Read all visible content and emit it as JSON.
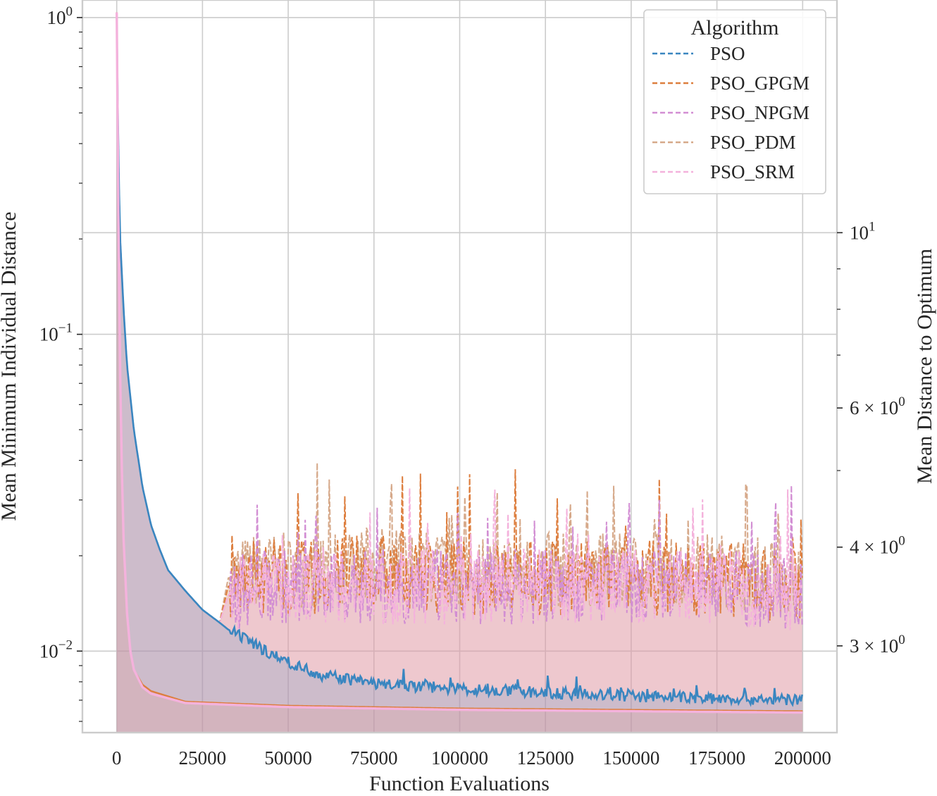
{
  "chart_data": {
    "type": "line",
    "xlabel": "Function Evaluations",
    "ylabel_left": "Mean Minimum Individual Distance",
    "ylabel_right": "Mean Distance to Optimum",
    "x_ticks": [
      "0",
      "25000",
      "50000",
      "75000",
      "100000",
      "125000",
      "150000",
      "175000",
      "200000"
    ],
    "x_tick_values": [
      0,
      25000,
      50000,
      75000,
      100000,
      125000,
      150000,
      175000,
      200000
    ],
    "xlim": [
      -10000,
      210000
    ],
    "left_yscale": "log",
    "left_ylim": [
      0.00553,
      1.136
    ],
    "left_yticks": [
      1,
      0.1,
      0.01
    ],
    "right_yscale": "log",
    "right_ylim": [
      2.33,
      19.7
    ],
    "right_ticks": [
      {
        "value": 10,
        "base": "10",
        "exp": "1"
      },
      {
        "value": 6,
        "base": "6 × 10",
        "exp": "0"
      },
      {
        "value": 4,
        "base": "4 × 10",
        "exp": "0"
      },
      {
        "value": 3,
        "base": "3 × 10",
        "exp": "0"
      }
    ],
    "legend": {
      "title": "Algorithm",
      "placement": "top-right",
      "entries": [
        {
          "name": "PSO",
          "color": "#3a86c0"
        },
        {
          "name": "PSO_GPGM",
          "color": "#dd7e3e"
        },
        {
          "name": "PSO_NPGM",
          "color": "#d28ed3"
        },
        {
          "name": "PSO_PDM",
          "color": "#d6a98a"
        },
        {
          "name": "PSO_SRM",
          "color": "#f4b2dc"
        }
      ]
    },
    "series_left_mean_min_individual_distance": [
      {
        "name": "PSO",
        "color": "#3a86c0",
        "x": [
          0,
          500,
          1000,
          2000,
          3000,
          5000,
          7500,
          10000,
          12500,
          15000,
          20000,
          25000,
          30000,
          32500,
          40000,
          50000,
          60000,
          75000,
          100000,
          125000,
          150000,
          175000,
          200000
        ],
        "y": [
          1.0,
          0.35,
          0.2,
          0.12,
          0.08,
          0.05,
          0.033,
          0.025,
          0.021,
          0.018,
          0.0155,
          0.0135,
          0.0123,
          0.0117,
          0.0105,
          0.0092,
          0.0084,
          0.0079,
          0.0076,
          0.0074,
          0.0072,
          0.0071,
          0.007
        ]
      },
      {
        "name": "PSO_GPGM",
        "color": "#dd7e3e",
        "x": [
          0,
          500,
          1000,
          2000,
          3000,
          5000,
          7500,
          10000,
          12500,
          15000,
          20000,
          25000,
          30000,
          32500,
          40000,
          50000,
          60000,
          75000,
          100000,
          125000,
          150000,
          175000,
          200000
        ],
        "y": [
          1.0,
          0.35,
          0.2,
          0.12,
          0.08,
          0.05,
          0.033,
          0.025,
          0.021,
          0.018,
          0.0155,
          0.0135,
          0.0123,
          0.016,
          0.017,
          0.017,
          0.017,
          0.018,
          0.017,
          0.017,
          0.017,
          0.017,
          0.016
        ]
      },
      {
        "name": "PSO_NPGM",
        "color": "#d28ed3",
        "x": [
          0,
          500,
          1000,
          2000,
          3000,
          5000,
          7500,
          10000,
          12500,
          15000,
          20000,
          25000,
          30000,
          32500,
          40000,
          50000,
          60000,
          75000,
          100000,
          125000,
          150000,
          175000,
          200000
        ],
        "y": [
          1.0,
          0.35,
          0.2,
          0.12,
          0.08,
          0.05,
          0.033,
          0.025,
          0.021,
          0.018,
          0.0155,
          0.0135,
          0.0123,
          0.015,
          0.016,
          0.016,
          0.016,
          0.016,
          0.016,
          0.016,
          0.016,
          0.016,
          0.015
        ]
      },
      {
        "name": "PSO_PDM",
        "color": "#d6a98a",
        "x": [
          0,
          500,
          1000,
          2000,
          3000,
          5000,
          7500,
          10000,
          12500,
          15000,
          20000,
          25000,
          30000,
          32500,
          40000,
          50000,
          60000,
          75000,
          100000,
          125000,
          150000,
          175000,
          200000
        ],
        "y": [
          1.0,
          0.35,
          0.2,
          0.12,
          0.08,
          0.05,
          0.033,
          0.025,
          0.021,
          0.018,
          0.0155,
          0.0135,
          0.0123,
          0.017,
          0.018,
          0.018,
          0.018,
          0.019,
          0.018,
          0.018,
          0.018,
          0.018,
          0.017
        ]
      },
      {
        "name": "PSO_SRM",
        "color": "#f4b2dc",
        "x": [
          0,
          500,
          1000,
          2000,
          3000,
          5000,
          7500,
          10000,
          12500,
          15000,
          20000,
          25000,
          30000,
          32500,
          40000,
          50000,
          60000,
          75000,
          100000,
          125000,
          150000,
          175000,
          200000
        ],
        "y": [
          1.0,
          0.35,
          0.2,
          0.12,
          0.08,
          0.05,
          0.033,
          0.025,
          0.021,
          0.018,
          0.0155,
          0.0135,
          0.0123,
          0.015,
          0.016,
          0.016,
          0.016,
          0.016,
          0.016,
          0.016,
          0.016,
          0.016,
          0.015
        ]
      }
    ],
    "series_right_mean_distance_to_optimum": [
      {
        "name": "PSO_GPGM",
        "color": "#dd7e3e",
        "x": [
          0,
          500,
          1000,
          1500,
          2000,
          3000,
          4000,
          5000,
          7500,
          10000,
          20000,
          50000,
          100000,
          150000,
          200000
        ],
        "y": [
          19.0,
          10.5,
          6.6,
          5.0,
          4.1,
          3.3,
          2.95,
          2.8,
          2.68,
          2.63,
          2.55,
          2.52,
          2.5,
          2.49,
          2.48
        ]
      },
      {
        "name": "PSO_SRM",
        "color": "#f4b2dc",
        "x": [
          0,
          500,
          1000,
          1500,
          2000,
          3000,
          4000,
          5000,
          7500,
          10000,
          20000,
          50000,
          100000,
          150000,
          200000
        ],
        "y": [
          19.0,
          10.5,
          6.6,
          5.0,
          4.1,
          3.3,
          2.95,
          2.8,
          2.66,
          2.61,
          2.54,
          2.51,
          2.49,
          2.48,
          2.47
        ]
      }
    ]
  }
}
